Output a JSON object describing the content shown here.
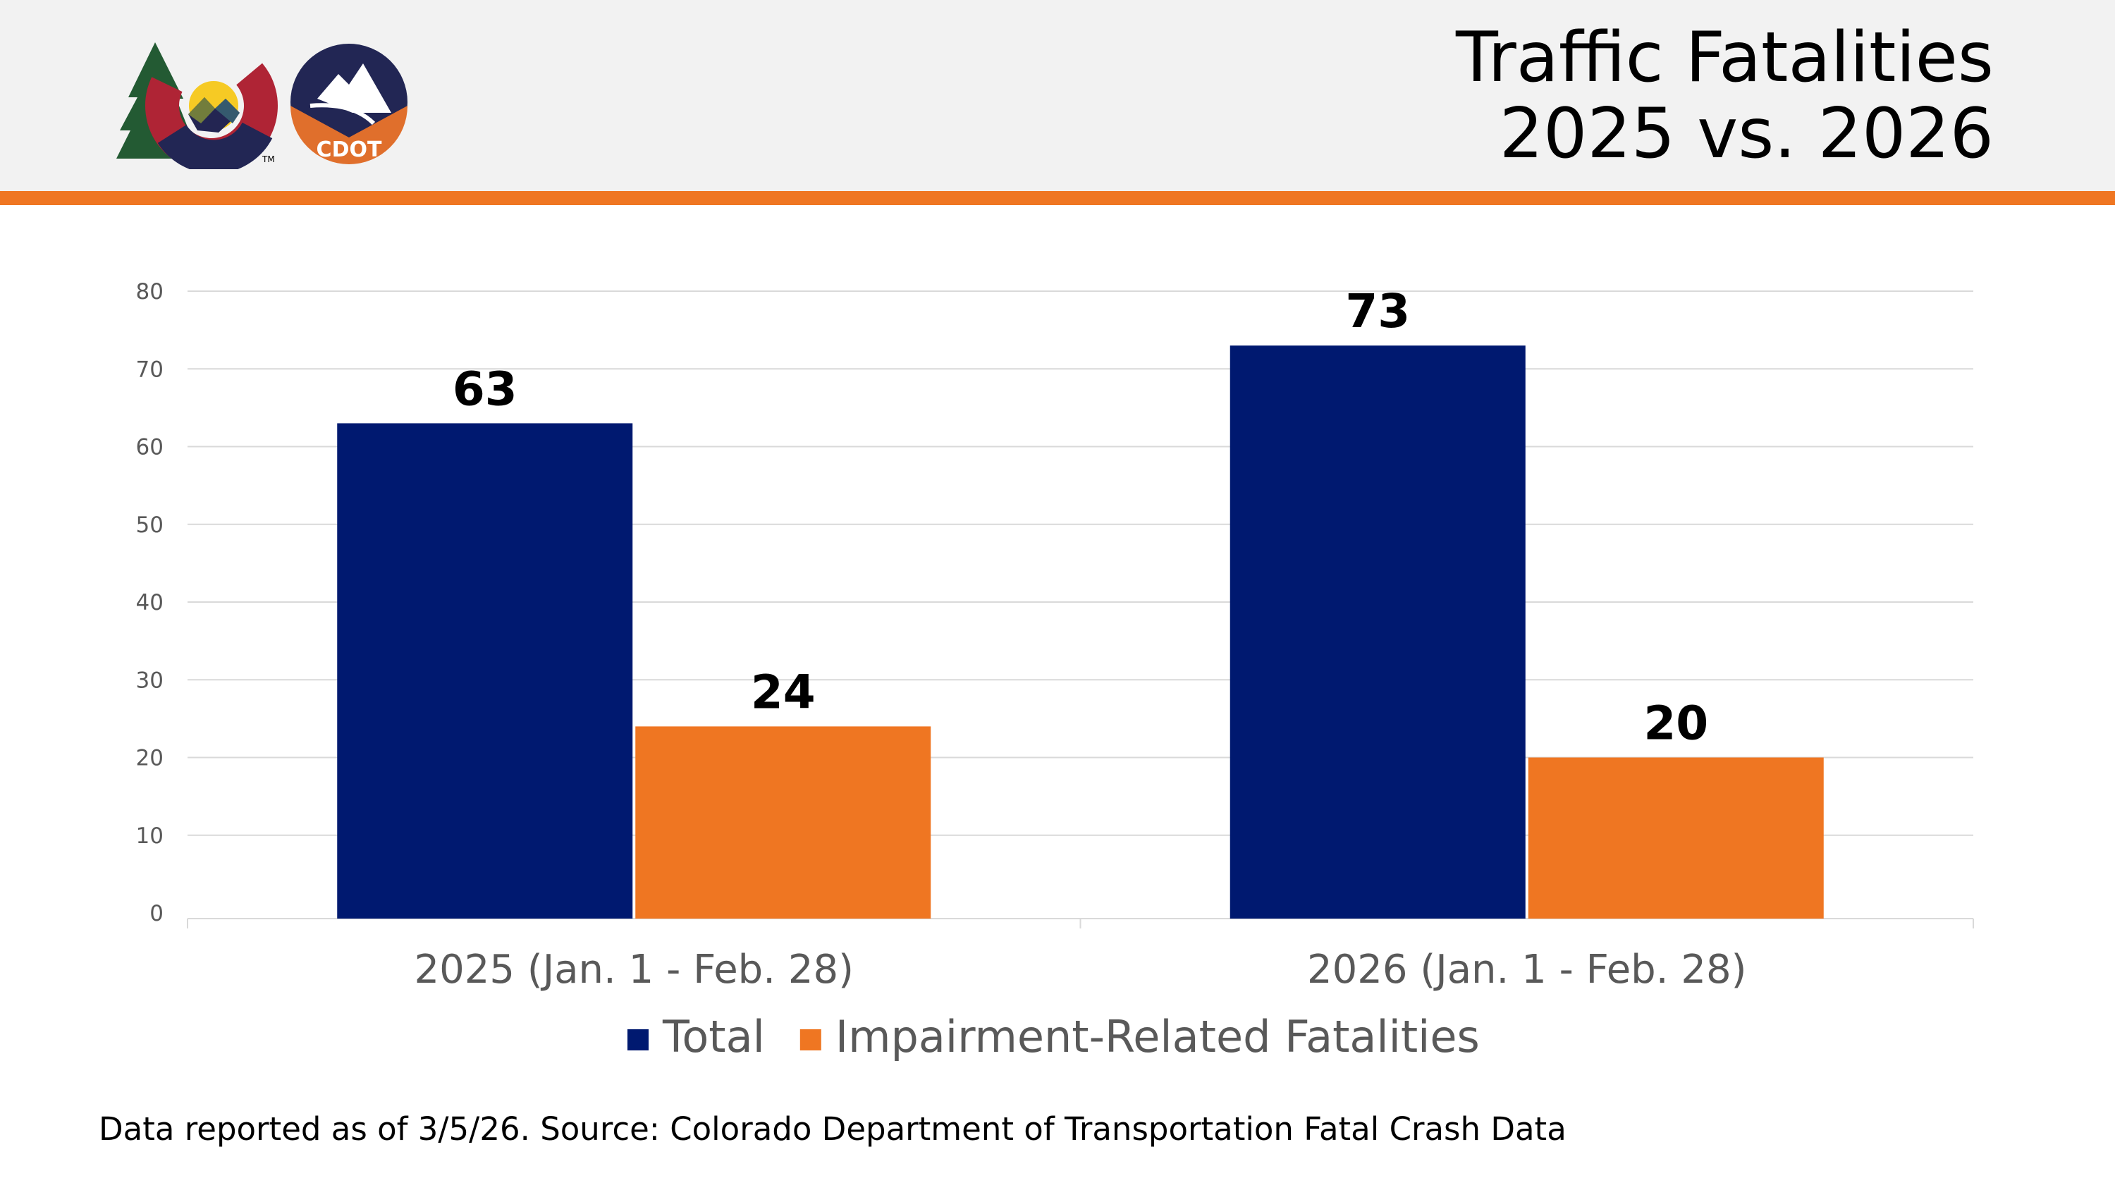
{
  "header": {
    "title_line1": "Traffic Fatalities",
    "title_line2": "2025 vs. 2026",
    "logos": [
      "Colorado state logo",
      "CDOT"
    ],
    "cdot_logo_text": "CDOT",
    "tm": "TM"
  },
  "colors": {
    "total": "#001970",
    "impairment": "#ef7622",
    "accent": "#ef7622",
    "header_bg": "#f2f2f2"
  },
  "chart_data": {
    "type": "bar",
    "categories": [
      "2025 (Jan. 1 - Feb. 28)",
      "2026 (Jan. 1 - Feb. 28)"
    ],
    "series": [
      {
        "name": "Total",
        "values": [
          63,
          73
        ],
        "color": "#001970"
      },
      {
        "name": "Impairment-Related Fatalities",
        "values": [
          24,
          20
        ],
        "color": "#ef7622"
      }
    ],
    "ylim": [
      0,
      80
    ],
    "yticks": [
      0,
      10,
      20,
      30,
      40,
      50,
      60,
      70,
      80
    ],
    "grid": true,
    "legend": "bottom",
    "data_labels": true
  },
  "footer": {
    "source": "Data reported as of 3/5/26. Source: Colorado Department of Transportation Fatal Crash Data"
  }
}
